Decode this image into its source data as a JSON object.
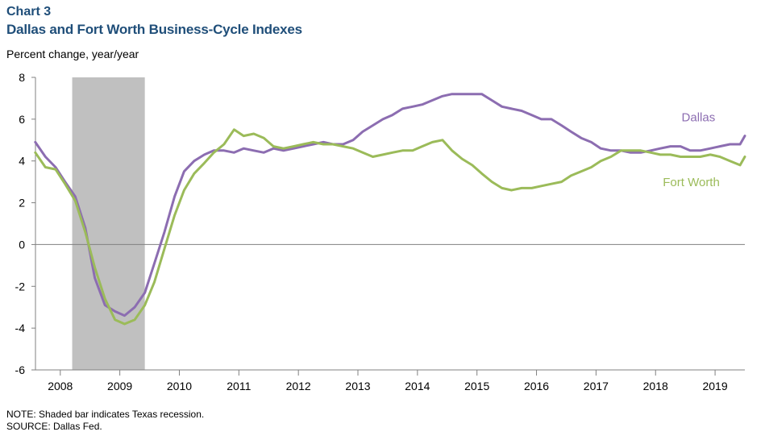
{
  "header": {
    "label": "Chart 3",
    "title": "Dallas and Fort Worth Business-Cycle Indexes"
  },
  "footer": {
    "note": "NOTE: Shaded bar indicates Texas recession.",
    "source": "SOURCE: Dallas Fed."
  },
  "chart_data": {
    "type": "line",
    "title": "Dallas and Fort Worth Business-Cycle Indexes",
    "ylabel": "Percent change, year/year",
    "ylim": [
      -6,
      8
    ],
    "yticks": [
      -6,
      -4,
      -2,
      0,
      2,
      4,
      6,
      8
    ],
    "xlim": [
      2007.583,
      2019.5
    ],
    "xticks": [
      "2008",
      "2009",
      "2010",
      "2011",
      "2012",
      "2013",
      "2014",
      "2015",
      "2016",
      "2017",
      "2018",
      "2019"
    ],
    "grid": false,
    "recession": {
      "start": 2008.2,
      "end": 2009.42,
      "color": "#c0c0c0"
    },
    "series": [
      {
        "name": "Dallas",
        "color": "#8c6db1",
        "x": [
          2007.58,
          2007.75,
          2007.92,
          2008.08,
          2008.25,
          2008.42,
          2008.58,
          2008.75,
          2008.92,
          2009.08,
          2009.25,
          2009.42,
          2009.58,
          2009.75,
          2009.92,
          2010.08,
          2010.25,
          2010.42,
          2010.58,
          2010.75,
          2010.92,
          2011.08,
          2011.25,
          2011.42,
          2011.58,
          2011.75,
          2011.92,
          2012.08,
          2012.25,
          2012.42,
          2012.58,
          2012.75,
          2012.92,
          2013.08,
          2013.25,
          2013.42,
          2013.58,
          2013.75,
          2013.92,
          2014.08,
          2014.25,
          2014.42,
          2014.58,
          2014.75,
          2014.92,
          2015.08,
          2015.25,
          2015.42,
          2015.58,
          2015.75,
          2015.92,
          2016.08,
          2016.25,
          2016.42,
          2016.58,
          2016.75,
          2016.92,
          2017.08,
          2017.25,
          2017.42,
          2017.58,
          2017.75,
          2017.92,
          2018.08,
          2018.25,
          2018.42,
          2018.58,
          2018.75,
          2018.92,
          2019.08,
          2019.25,
          2019.42,
          2019.5
        ],
        "y": [
          4.9,
          4.2,
          3.7,
          3.0,
          2.3,
          0.8,
          -1.6,
          -2.9,
          -3.2,
          -3.4,
          -3.0,
          -2.3,
          -0.9,
          0.6,
          2.3,
          3.5,
          4.0,
          4.3,
          4.5,
          4.5,
          4.4,
          4.6,
          4.5,
          4.4,
          4.6,
          4.5,
          4.6,
          4.7,
          4.8,
          4.9,
          4.8,
          4.8,
          5.0,
          5.4,
          5.7,
          6.0,
          6.2,
          6.5,
          6.6,
          6.7,
          6.9,
          7.1,
          7.2,
          7.2,
          7.2,
          7.2,
          6.9,
          6.6,
          6.5,
          6.4,
          6.2,
          6.0,
          6.0,
          5.7,
          5.4,
          5.1,
          4.9,
          4.6,
          4.5,
          4.5,
          4.4,
          4.4,
          4.5,
          4.6,
          4.7,
          4.7,
          4.5,
          4.5,
          4.6,
          4.7,
          4.8,
          4.8,
          5.2
        ]
      },
      {
        "name": "Fort Worth",
        "color": "#9bbb59",
        "x": [
          2007.58,
          2007.75,
          2007.92,
          2008.08,
          2008.25,
          2008.42,
          2008.58,
          2008.75,
          2008.92,
          2009.08,
          2009.25,
          2009.42,
          2009.58,
          2009.75,
          2009.92,
          2010.08,
          2010.25,
          2010.42,
          2010.58,
          2010.75,
          2010.92,
          2011.08,
          2011.25,
          2011.42,
          2011.58,
          2011.75,
          2011.92,
          2012.08,
          2012.25,
          2012.42,
          2012.58,
          2012.75,
          2012.92,
          2013.08,
          2013.25,
          2013.42,
          2013.58,
          2013.75,
          2013.92,
          2014.08,
          2014.25,
          2014.42,
          2014.58,
          2014.75,
          2014.92,
          2015.08,
          2015.25,
          2015.42,
          2015.58,
          2015.75,
          2015.92,
          2016.08,
          2016.25,
          2016.42,
          2016.58,
          2016.75,
          2016.92,
          2017.08,
          2017.25,
          2017.42,
          2017.58,
          2017.75,
          2017.92,
          2018.08,
          2018.25,
          2018.42,
          2018.58,
          2018.75,
          2018.92,
          2019.08,
          2019.25,
          2019.42,
          2019.5
        ],
        "y": [
          4.4,
          3.7,
          3.6,
          2.9,
          2.1,
          0.6,
          -1.1,
          -2.6,
          -3.6,
          -3.8,
          -3.6,
          -2.9,
          -1.8,
          -0.2,
          1.4,
          2.6,
          3.4,
          3.9,
          4.4,
          4.8,
          5.5,
          5.2,
          5.3,
          5.1,
          4.7,
          4.6,
          4.7,
          4.8,
          4.9,
          4.8,
          4.8,
          4.7,
          4.6,
          4.4,
          4.2,
          4.3,
          4.4,
          4.5,
          4.5,
          4.7,
          4.9,
          5.0,
          4.5,
          4.1,
          3.8,
          3.4,
          3.0,
          2.7,
          2.6,
          2.7,
          2.7,
          2.8,
          2.9,
          3.0,
          3.3,
          3.5,
          3.7,
          4.0,
          4.2,
          4.5,
          4.5,
          4.5,
          4.4,
          4.3,
          4.3,
          4.2,
          4.2,
          4.2,
          4.3,
          4.2,
          4.0,
          3.8,
          4.2
        ]
      }
    ]
  }
}
